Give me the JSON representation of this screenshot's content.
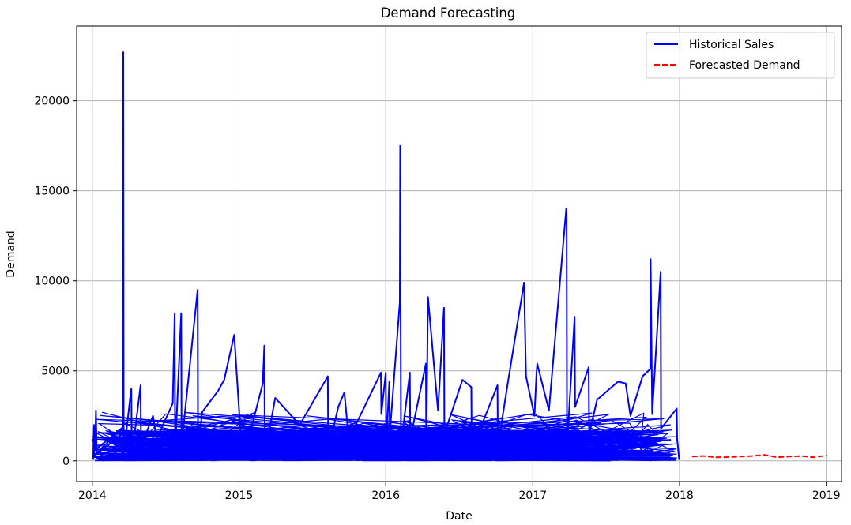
{
  "chart_data": {
    "type": "line",
    "title": "Demand Forecasting",
    "xlabel": "Date",
    "ylabel": "Demand",
    "xlim": [
      "2013-11-23",
      "2019-02-08"
    ],
    "ylim": [
      -1150,
      24150
    ],
    "x_ticks": [
      "2014-01-01",
      "2015-01-01",
      "2016-01-01",
      "2017-01-01",
      "2018-01-01",
      "2019-01-01"
    ],
    "x_tick_labels": [
      "2014",
      "2015",
      "2016",
      "2017",
      "2018",
      "2019"
    ],
    "y_ticks": [
      0,
      5000,
      10000,
      15000,
      20000
    ],
    "y_tick_labels": [
      "0",
      "5000",
      "10000",
      "15000",
      "20000"
    ],
    "grid": true,
    "legend": "top-right",
    "series": [
      {
        "name": "Historical Sales",
        "color": "#0000ff",
        "style": "solid",
        "points": [
          [
            "2014-01-03",
            120
          ],
          [
            "2014-01-05",
            2000
          ],
          [
            "2014-01-06",
            300
          ],
          [
            "2014-03-20",
            1900
          ],
          [
            "2014-01-08",
            600
          ],
          [
            "2014-01-10",
            2800
          ],
          [
            "2014-01-12",
            400
          ],
          [
            "2014-03-18",
            1500
          ],
          [
            "2014-03-19",
            22700
          ],
          [
            "2014-03-20",
            300
          ],
          [
            "2014-04-05",
            3500
          ],
          [
            "2014-04-08",
            4000
          ],
          [
            "2014-04-09",
            200
          ],
          [
            "2014-05-01",
            4200
          ],
          [
            "2014-05-02",
            800
          ],
          [
            "2014-06-01",
            2500
          ],
          [
            "2014-06-10",
            1200
          ],
          [
            "2014-07-20",
            3200
          ],
          [
            "2014-07-25",
            8200
          ],
          [
            "2014-07-26",
            500
          ],
          [
            "2014-08-10",
            8200
          ],
          [
            "2014-08-11",
            900
          ],
          [
            "2014-09-20",
            9500
          ],
          [
            "2014-09-21",
            300
          ],
          [
            "2014-10-01",
            2700
          ],
          [
            "2014-11-10",
            3900
          ],
          [
            "2014-11-25",
            4500
          ],
          [
            "2014-12-20",
            7000
          ],
          [
            "2015-01-05",
            1500
          ],
          [
            "2015-01-20",
            800
          ],
          [
            "2015-03-01",
            4300
          ],
          [
            "2015-03-05",
            6400
          ],
          [
            "2015-03-06",
            300
          ],
          [
            "2015-04-01",
            3500
          ],
          [
            "2015-06-01",
            2000
          ],
          [
            "2015-08-10",
            4700
          ],
          [
            "2015-08-11",
            600
          ],
          [
            "2015-09-05",
            3000
          ],
          [
            "2015-09-20",
            3800
          ],
          [
            "2015-10-01",
            1200
          ],
          [
            "2015-12-20",
            4900
          ],
          [
            "2015-12-21",
            2600
          ],
          [
            "2016-01-01",
            4900
          ],
          [
            "2016-01-02",
            800
          ],
          [
            "2016-01-10",
            4400
          ],
          [
            "2016-01-11",
            1500
          ],
          [
            "2016-02-05",
            8800
          ],
          [
            "2016-02-06",
            17500
          ],
          [
            "2016-02-08",
            900
          ],
          [
            "2016-03-01",
            4900
          ],
          [
            "2016-03-02",
            1200
          ],
          [
            "2016-04-10",
            5400
          ],
          [
            "2016-04-11",
            600
          ],
          [
            "2016-04-15",
            9100
          ],
          [
            "2016-05-10",
            2800
          ],
          [
            "2016-05-25",
            8500
          ],
          [
            "2016-05-26",
            1500
          ],
          [
            "2016-07-10",
            4500
          ],
          [
            "2016-08-01",
            4100
          ],
          [
            "2016-08-02",
            600
          ],
          [
            "2016-10-05",
            4200
          ],
          [
            "2016-10-06",
            800
          ],
          [
            "2016-11-01",
            4500
          ],
          [
            "2016-12-10",
            9900
          ],
          [
            "2016-12-15",
            4700
          ],
          [
            "2017-01-05",
            2500
          ],
          [
            "2017-01-10",
            4800
          ],
          [
            "2017-01-12",
            5400
          ],
          [
            "2017-02-10",
            2800
          ],
          [
            "2017-03-25",
            14000
          ],
          [
            "2017-03-26",
            13800
          ],
          [
            "2017-03-27",
            800
          ],
          [
            "2017-04-15",
            8000
          ],
          [
            "2017-04-16",
            3000
          ],
          [
            "2017-05-20",
            5200
          ],
          [
            "2017-05-21",
            1500
          ],
          [
            "2017-06-10",
            3400
          ],
          [
            "2017-08-01",
            4400
          ],
          [
            "2017-08-20",
            4300
          ],
          [
            "2017-09-01",
            2500
          ],
          [
            "2017-10-01",
            4700
          ],
          [
            "2017-10-20",
            5100
          ],
          [
            "2017-10-21",
            11200
          ],
          [
            "2017-10-25",
            2600
          ],
          [
            "2017-11-15",
            10500
          ],
          [
            "2017-11-16",
            1800
          ],
          [
            "2017-12-25",
            2900
          ],
          [
            "2017-12-26",
            1200
          ],
          [
            "2017-12-30",
            300
          ],
          [
            "2017-12-31",
            50
          ]
        ]
      },
      {
        "name": "Forecasted Demand",
        "color": "#ff0000",
        "style": "dashed",
        "points": [
          [
            "2018-02-01",
            240
          ],
          [
            "2018-03-01",
            270
          ],
          [
            "2018-04-01",
            200
          ],
          [
            "2018-05-01",
            210
          ],
          [
            "2018-06-01",
            240
          ],
          [
            "2018-07-01",
            270
          ],
          [
            "2018-08-01",
            330
          ],
          [
            "2018-09-01",
            200
          ],
          [
            "2018-10-01",
            240
          ],
          [
            "2018-11-01",
            270
          ],
          [
            "2018-12-01",
            200
          ],
          [
            "2019-01-01",
            300
          ]
        ]
      }
    ]
  }
}
